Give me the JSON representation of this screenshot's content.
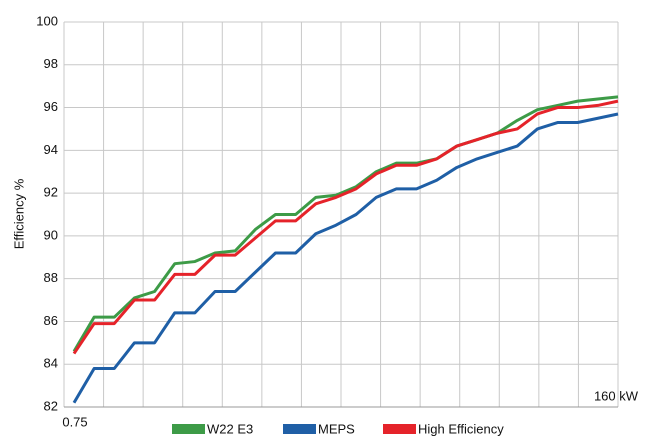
{
  "chart_data": {
    "type": "line",
    "y_label": "Efficiency %",
    "categories": [
      "0.75",
      null,
      null,
      null,
      null,
      null,
      null,
      null,
      null,
      null,
      null,
      null,
      null,
      null,
      null,
      null,
      null,
      null,
      null,
      null,
      null,
      null,
      null,
      null,
      null,
      null,
      null,
      "160 kW"
    ],
    "series": [
      {
        "name": "W22 E3",
        "color": "#3d9b47",
        "values": [
          84.6,
          86.2,
          86.2,
          87.1,
          87.4,
          88.7,
          88.8,
          89.2,
          89.3,
          90.3,
          91.0,
          91.0,
          91.8,
          91.9,
          92.3,
          93.0,
          93.4,
          93.4,
          93.6,
          94.2,
          94.5,
          94.8,
          95.4,
          95.9,
          96.1,
          96.3,
          96.4,
          96.5
        ]
      },
      {
        "name": "MEPS",
        "color": "#1f5fa6",
        "values": [
          82.2,
          83.8,
          83.8,
          85.0,
          85.0,
          86.4,
          86.4,
          87.4,
          87.4,
          88.3,
          89.2,
          89.2,
          90.1,
          90.5,
          91.0,
          91.8,
          92.2,
          92.2,
          92.6,
          93.2,
          93.6,
          93.9,
          94.2,
          95.0,
          95.3,
          95.3,
          95.5,
          95.7
        ]
      },
      {
        "name": "High Efficiency",
        "color": "#e5232a",
        "values": [
          84.5,
          85.9,
          85.9,
          87.0,
          87.0,
          88.2,
          88.2,
          89.1,
          89.1,
          89.9,
          90.7,
          90.7,
          91.5,
          91.8,
          92.2,
          92.9,
          93.3,
          93.3,
          93.6,
          94.2,
          94.5,
          94.8,
          95.0,
          95.7,
          96.0,
          96.0,
          96.1,
          96.3
        ]
      }
    ],
    "ylim": [
      82,
      100
    ],
    "yticks": [
      82,
      84,
      86,
      88,
      90,
      92,
      94,
      96,
      98,
      100
    ],
    "grid": true,
    "legend": "bottom"
  }
}
